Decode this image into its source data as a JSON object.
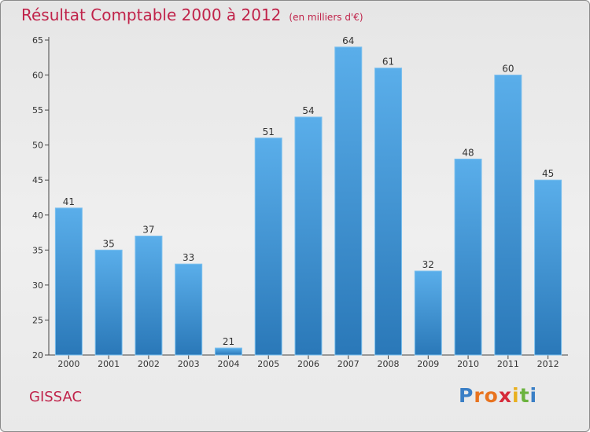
{
  "title": "Résultat Comptable 2000 à 2012",
  "subtitle": "(en milliers d'€)",
  "town": "GISSAC",
  "logo": {
    "letters": [
      "P",
      "r",
      "o",
      "x",
      "i",
      "t",
      "i"
    ],
    "colors": [
      "#3a7fc6",
      "#e8731f",
      "#e8731f",
      "#d62a3a",
      "#e8b020",
      "#6cb33f",
      "#3a7fc6"
    ]
  },
  "colors": {
    "title": "#c0234a",
    "bar_top": "#5aaeea",
    "bar_bottom": "#2a78b8"
  },
  "chart_data": {
    "type": "bar",
    "categories": [
      "2000",
      "2001",
      "2002",
      "2003",
      "2004",
      "2005",
      "2006",
      "2007",
      "2008",
      "2009",
      "2010",
      "2011",
      "2012"
    ],
    "values": [
      41,
      35,
      37,
      33,
      21,
      51,
      54,
      64,
      61,
      32,
      48,
      60,
      45
    ],
    "ylim": [
      20,
      65
    ],
    "yticks": [
      20,
      25,
      30,
      35,
      40,
      45,
      50,
      55,
      60,
      65
    ],
    "grid": false,
    "data_labels": true
  }
}
